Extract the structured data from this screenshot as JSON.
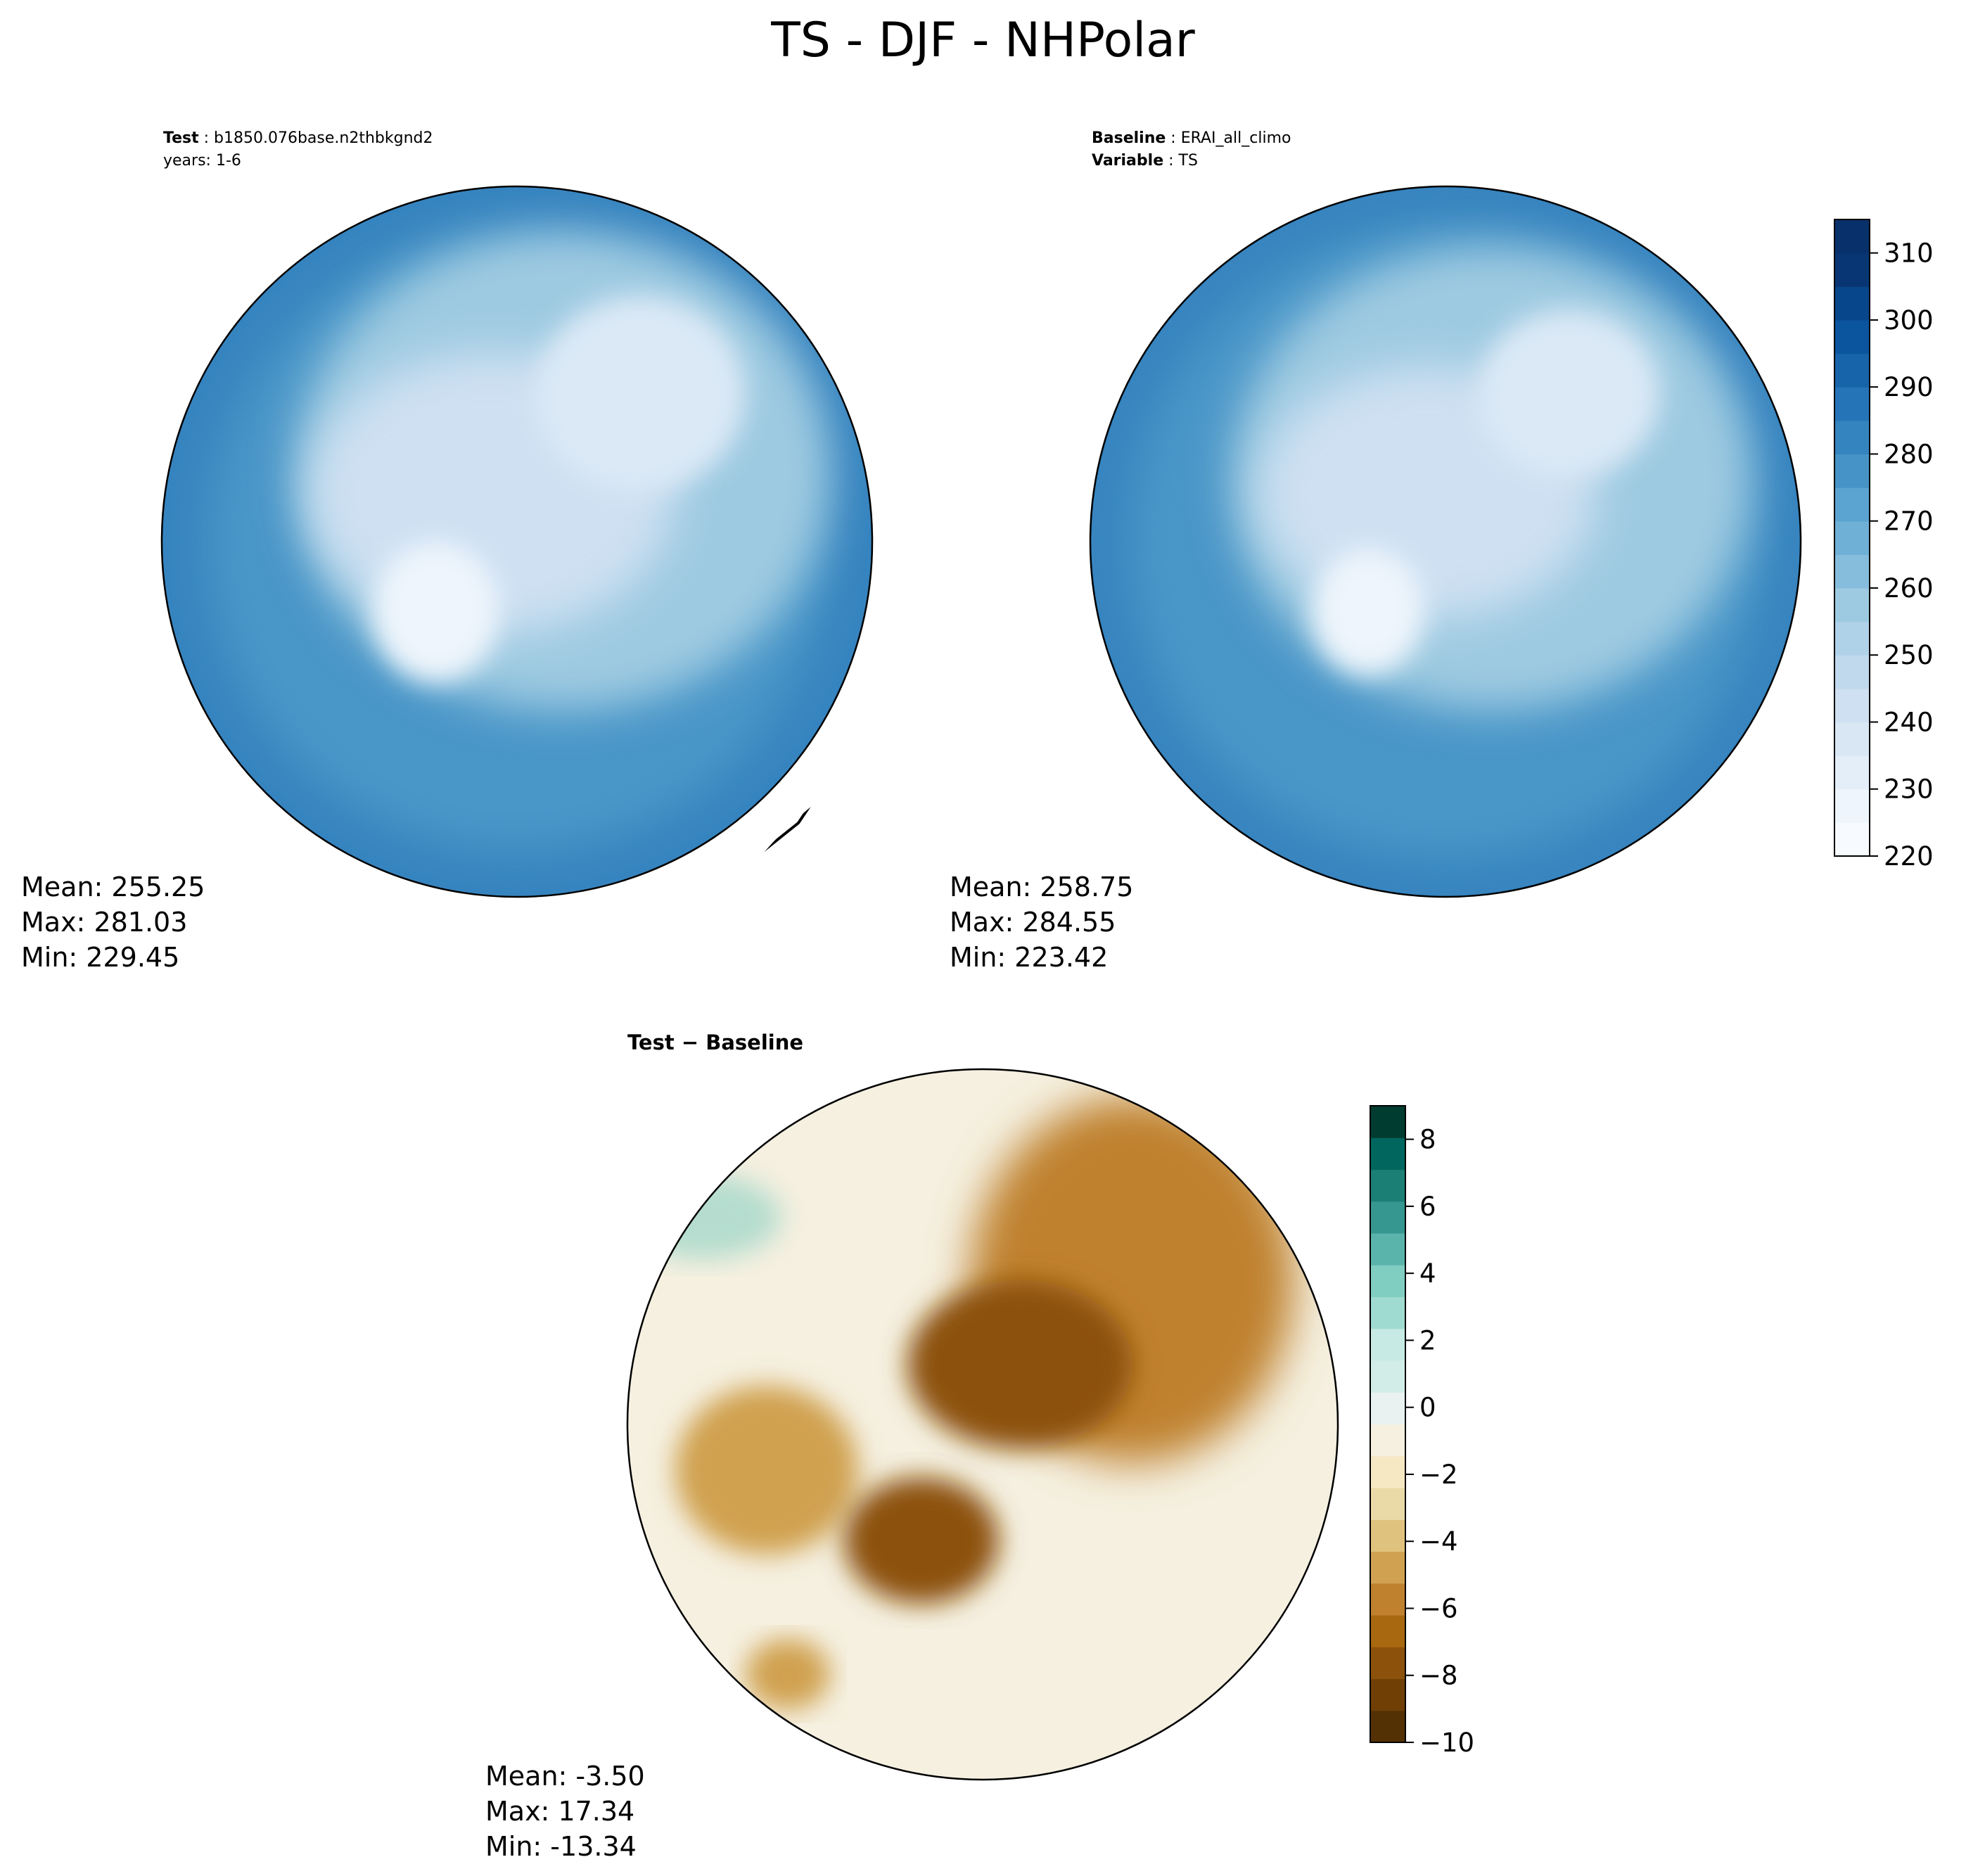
{
  "title": "TS - DJF - NHPolar",
  "panels": [
    {
      "id": "test",
      "label_bold": "Test",
      "label_value": "b1850.076base.n2thbkgnd2",
      "label2": "years: 1-6",
      "stats": {
        "mean": "Mean: 255.25",
        "max": "Max: 281.03",
        "min": "Min: 229.45"
      }
    },
    {
      "id": "baseline",
      "label_bold": "Baseline",
      "label_value": "ERAI_all_climo",
      "label2_bold": "Variable",
      "label2_value": "TS",
      "stats": {
        "mean": "Mean: 258.75",
        "max": "Max: 284.55",
        "min": "Min: 223.42"
      }
    },
    {
      "id": "diff",
      "label_bold": "Test − Baseline",
      "stats": {
        "mean": "Mean: -3.50",
        "max": "Max: 17.34",
        "min": "Min: -13.34"
      }
    }
  ],
  "colorbar_abs": {
    "min": 220,
    "max": 315,
    "step": 5,
    "tick_values": [
      220,
      230,
      240,
      250,
      260,
      270,
      280,
      290,
      300,
      310
    ],
    "tick_labels": [
      "220",
      "230",
      "240",
      "250",
      "260",
      "270",
      "280",
      "290",
      "300",
      "310"
    ],
    "colors": [
      "#f7fbff",
      "#eef5fc",
      "#e3eef9",
      "#d9e7f5",
      "#cee0f2",
      "#c1d9ed",
      "#b0d2e8",
      "#9ecae1",
      "#87bddc",
      "#6fb0d7",
      "#5ba3d0",
      "#4694c7",
      "#3484bf",
      "#2474b7",
      "#1864aa",
      "#0b559f",
      "#08468b",
      "#083674",
      "#08306b"
    ]
  },
  "colorbar_diff": {
    "min": -10,
    "max": 9,
    "step": 1,
    "tick_values": [
      -10,
      -8,
      -6,
      -4,
      -2,
      0,
      2,
      4,
      6,
      8
    ],
    "tick_labels": [
      "−10",
      "−8",
      "−6",
      "−4",
      "−2",
      "0",
      "2",
      "4",
      "6",
      "8"
    ],
    "colors": [
      "#543005",
      "#6f3f06",
      "#8c510a",
      "#a8680f",
      "#bf812d",
      "#d0a150",
      "#dfc27d",
      "#eadaa8",
      "#f6e8c3",
      "#f5f0e0",
      "#e9f2f0",
      "#d2ede8",
      "#c7eae5",
      "#a0dbd1",
      "#80cdc1",
      "#5ab4ab",
      "#35978f",
      "#1c7f76",
      "#01665e",
      "#003c30"
    ]
  },
  "map_colors": {
    "abs_ocean": "#4a96c8",
    "abs_ocean_far": "#3784bf",
    "abs_mid": "#9ecae1",
    "abs_pole": "#cee0f2",
    "abs_greenland": "#eef5fc",
    "abs_siberia": "#dbe9f6",
    "diff_bg": "#f5f0e0",
    "diff_arctic": "#8c510a",
    "diff_siberia": "#bf812d",
    "diff_canada": "#d0a150",
    "diff_positive": "#80cdc1"
  },
  "coastline_color": "#000000"
}
